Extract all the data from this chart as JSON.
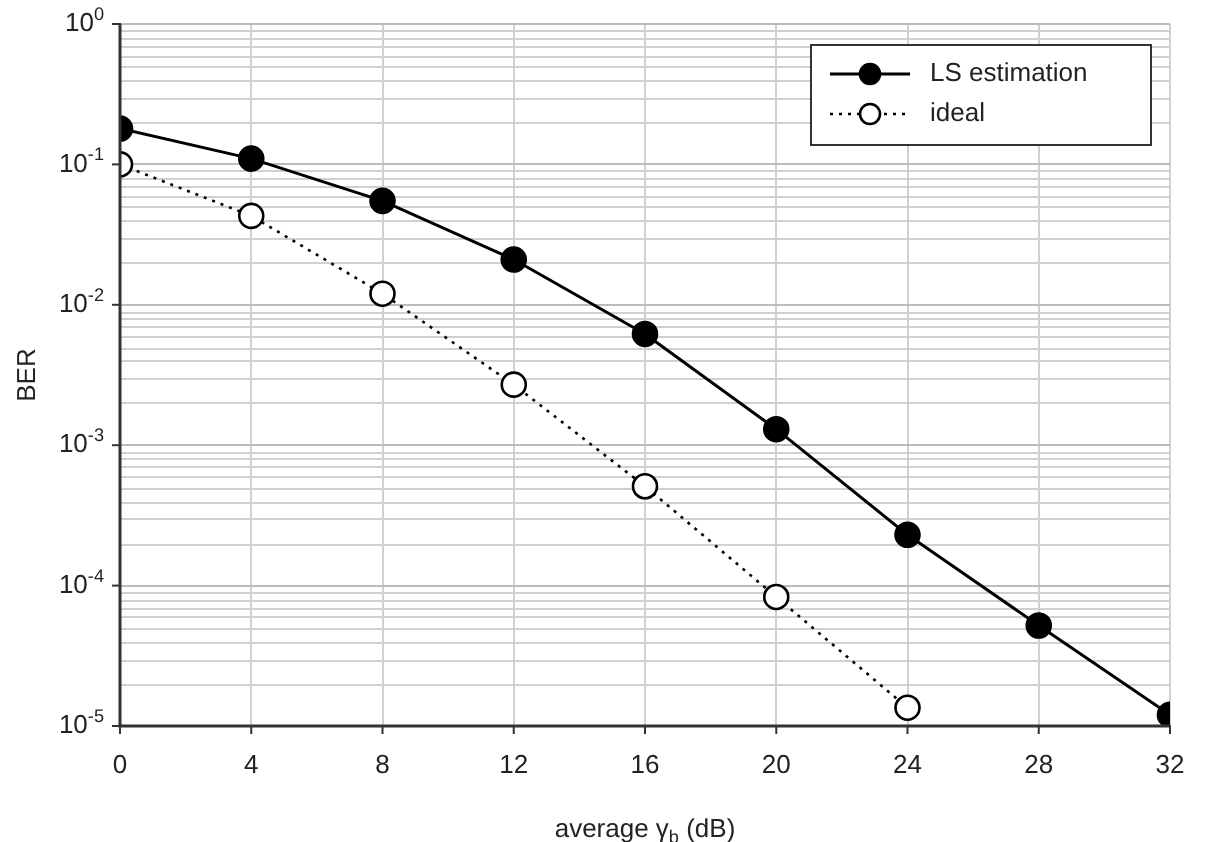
{
  "chart_data": {
    "type": "line",
    "xlabel": "average γ$_{b}$ (dB)",
    "ylabel": "BER",
    "x": [
      0,
      4,
      8,
      12,
      16,
      20,
      24,
      28,
      32
    ],
    "series": [
      {
        "name": "LS estimation",
        "color": "#000000",
        "line_style": "solid",
        "values": [
          0.18,
          0.11,
          0.055,
          0.021,
          0.0062,
          0.0013,
          0.00023,
          5.2e-05,
          1.2e-05
        ]
      },
      {
        "name": "ideal",
        "color": "#000000",
        "line_style": "dotted",
        "values": [
          0.1,
          0.043,
          0.012,
          0.0027,
          0.00051,
          8.3e-05,
          1.35e-05,
          null,
          null
        ]
      }
    ],
    "log": "y",
    "xlim": [
      0,
      32
    ],
    "xticks": [
      0,
      4,
      8,
      12,
      16,
      20,
      24,
      28,
      32
    ],
    "ylim": [
      1e-05,
      1
    ],
    "yticks": [
      {
        "value": 1,
        "label": "10$^{0}$"
      },
      {
        "value": 0.1,
        "label": "10$^{-1}$"
      },
      {
        "value": 0.01,
        "label": "10$^{-2}$"
      },
      {
        "value": 0.001,
        "label": "10$^{-3}$"
      },
      {
        "value": 0.0001,
        "label": "10$^{-4}$"
      },
      {
        "value": 1e-05,
        "label": "10$^{-5}$"
      }
    ],
    "grid": true,
    "legend": "top right",
    "marker": "circle"
  }
}
